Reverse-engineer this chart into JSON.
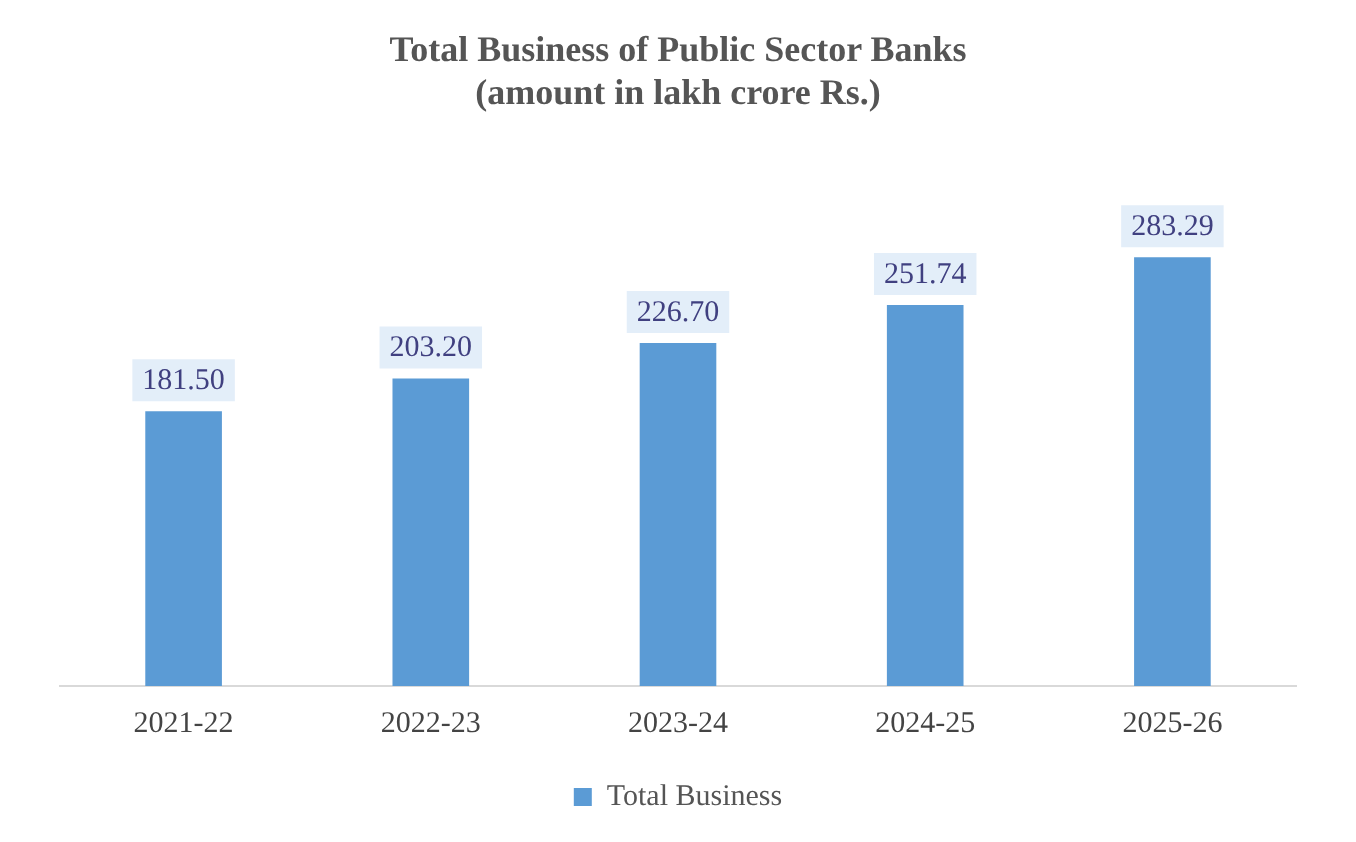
{
  "chart_data": {
    "type": "bar",
    "title": "Total Business of Public Sector Banks",
    "subtitle": "(amount in lakh crore Rs.)",
    "categories": [
      "2021-22",
      "2022-23",
      "2023-24",
      "2024-25",
      "2025-26"
    ],
    "series": [
      {
        "name": "Total Business",
        "color": "#5b9bd5",
        "values": [
          181.5,
          203.2,
          226.7,
          251.74,
          283.29
        ],
        "value_labels": [
          "181.50",
          "203.20",
          "226.70",
          "251.74",
          "283.29"
        ]
      }
    ],
    "legend": "bottom",
    "grid": false
  }
}
